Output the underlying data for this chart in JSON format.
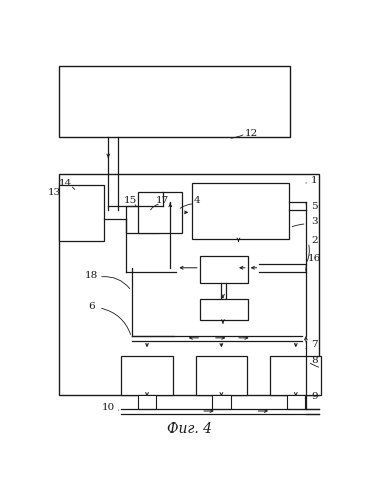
{
  "title": "Фиг. 4",
  "bg_color": "#ffffff",
  "line_color": "#1a1a1a",
  "lw": 0.9
}
